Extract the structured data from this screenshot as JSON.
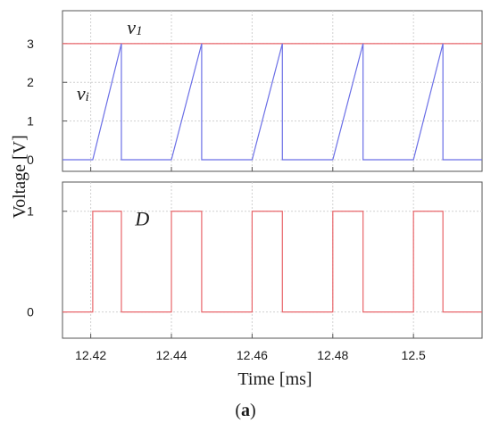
{
  "chart_data": [
    {
      "type": "line",
      "id": "top",
      "ylabel": "Voltage [V]",
      "xlim": [
        12.413,
        12.517
      ],
      "ylim": [
        -0.3,
        3.85
      ],
      "yticks": [
        0,
        1,
        2,
        3
      ],
      "ytick_labels": [
        "0",
        "1",
        "2",
        "3"
      ],
      "grid": true,
      "series": [
        {
          "name": "v1",
          "color": "#e8656a",
          "x": [
            12.413,
            12.517
          ],
          "y": [
            3,
            3
          ]
        },
        {
          "name": "vi",
          "color": "#6b6fe6",
          "x": [
            12.413,
            12.4205,
            12.4276,
            12.4276,
            12.44,
            12.4475,
            12.4475,
            12.46,
            12.4675,
            12.4675,
            12.48,
            12.4875,
            12.4875,
            12.5,
            12.5073,
            12.5073,
            12.517
          ],
          "y": [
            0,
            0,
            3,
            0,
            0,
            3,
            0,
            0,
            3,
            0,
            0,
            3,
            0,
            0,
            3,
            0,
            0
          ]
        }
      ],
      "annotations": [
        {
          "text": "v",
          "sub": "1",
          "x": 12.429,
          "y": 3.25
        },
        {
          "text": "v",
          "sub": "i",
          "x": 12.4165,
          "y": 1.55
        }
      ]
    },
    {
      "type": "line",
      "id": "bottom",
      "xlabel": "Time [ms]",
      "xlim": [
        12.413,
        12.517
      ],
      "ylim": [
        -0.26,
        1.29
      ],
      "yticks": [
        0,
        1
      ],
      "ytick_labels": [
        "0",
        "1"
      ],
      "xticks": [
        12.42,
        12.44,
        12.46,
        12.48,
        12.5
      ],
      "xtick_labels": [
        "12.42",
        "12.44",
        "12.46",
        "12.48",
        "12.5"
      ],
      "grid": true,
      "series": [
        {
          "name": "D",
          "color": "#e8656a",
          "x": [
            12.413,
            12.4205,
            12.4205,
            12.4276,
            12.4276,
            12.44,
            12.44,
            12.4475,
            12.4475,
            12.46,
            12.46,
            12.4675,
            12.4675,
            12.48,
            12.48,
            12.4875,
            12.4875,
            12.5,
            12.5,
            12.5073,
            12.5073,
            12.517
          ],
          "y": [
            0,
            0,
            1,
            1,
            0,
            0,
            1,
            1,
            0,
            0,
            1,
            1,
            0,
            0,
            1,
            1,
            0,
            0,
            1,
            1,
            0,
            0
          ]
        }
      ],
      "annotations": [
        {
          "text": "D",
          "sub": "",
          "x": 12.431,
          "y": 0.86
        }
      ]
    }
  ],
  "caption": {
    "open": "(",
    "label": "a",
    "close": ")"
  }
}
